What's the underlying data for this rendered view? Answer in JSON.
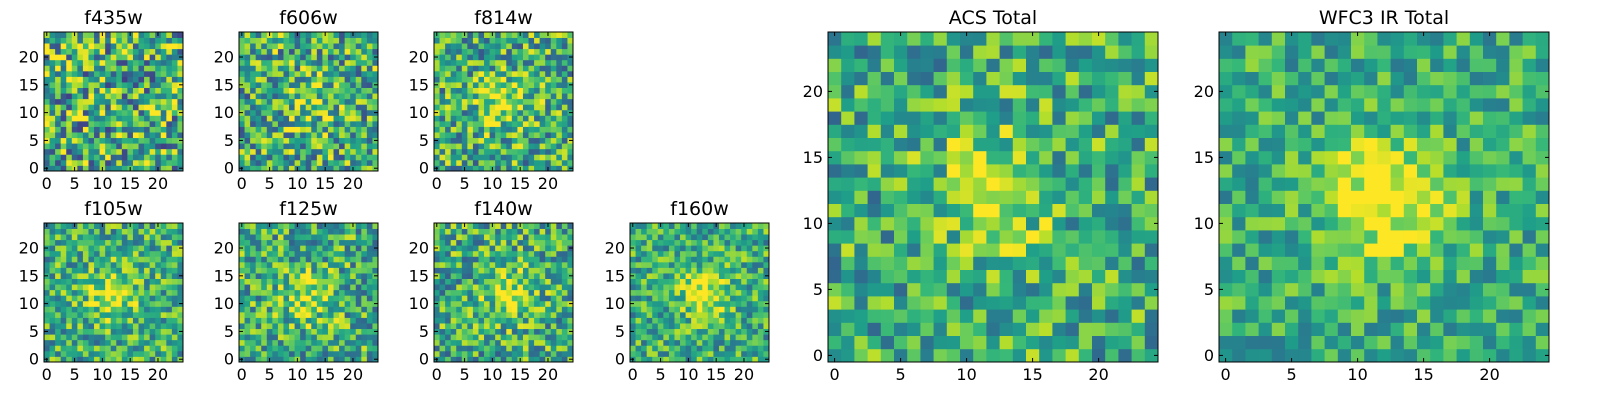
{
  "chart_data": [
    {
      "type": "heatmap",
      "title": "f435w",
      "grid_size": 25,
      "peak": [
        12,
        12
      ],
      "peak_contrast": 0.0,
      "noise": 0.85,
      "xticks": [
        0,
        5,
        10,
        15,
        20
      ],
      "yticks": [
        0,
        5,
        10,
        15,
        20
      ],
      "colormap": "viridis",
      "seed": 11
    },
    {
      "type": "heatmap",
      "title": "f606w",
      "grid_size": 25,
      "peak": [
        12,
        12
      ],
      "peak_contrast": 0.35,
      "noise": 0.75,
      "xticks": [
        0,
        5,
        10,
        15,
        20
      ],
      "yticks": [
        0,
        5,
        10,
        15,
        20
      ],
      "colormap": "viridis",
      "seed": 23
    },
    {
      "type": "heatmap",
      "title": "f814w",
      "grid_size": 25,
      "peak": [
        12,
        12
      ],
      "peak_contrast": 0.55,
      "noise": 0.7,
      "xticks": [
        0,
        5,
        10,
        15,
        20
      ],
      "yticks": [
        0,
        5,
        10,
        15,
        20
      ],
      "colormap": "viridis",
      "seed": 37
    },
    {
      "type": "heatmap",
      "title": "f105w",
      "grid_size": 25,
      "peak": [
        12,
        12
      ],
      "peak_contrast": 0.6,
      "noise": 0.6,
      "xticks": [
        0,
        5,
        10,
        15,
        20
      ],
      "yticks": [
        0,
        5,
        10,
        15,
        20
      ],
      "colormap": "viridis",
      "seed": 41
    },
    {
      "type": "heatmap",
      "title": "f125w",
      "grid_size": 25,
      "peak": [
        12,
        11
      ],
      "peak_contrast": 0.5,
      "noise": 0.65,
      "xticks": [
        0,
        5,
        10,
        15,
        20
      ],
      "yticks": [
        0,
        5,
        10,
        15,
        20
      ],
      "colormap": "viridis",
      "seed": 53
    },
    {
      "type": "heatmap",
      "title": "f140w",
      "grid_size": 25,
      "peak": [
        13,
        12
      ],
      "peak_contrast": 0.55,
      "noise": 0.65,
      "xticks": [
        0,
        5,
        10,
        15,
        20
      ],
      "yticks": [
        0,
        5,
        10,
        15,
        20
      ],
      "colormap": "viridis",
      "seed": 67
    },
    {
      "type": "heatmap",
      "title": "f160w",
      "grid_size": 25,
      "peak": [
        13,
        12
      ],
      "peak_contrast": 0.7,
      "noise": 0.55,
      "xticks": [
        0,
        5,
        10,
        15,
        20
      ],
      "yticks": [
        0,
        5,
        10,
        15,
        20
      ],
      "colormap": "viridis",
      "seed": 71
    },
    {
      "type": "heatmap",
      "title": "ACS Total",
      "grid_size": 25,
      "peak": [
        12,
        12
      ],
      "peak_contrast": 0.55,
      "noise": 0.6,
      "xticks": [
        0,
        5,
        10,
        15,
        20
      ],
      "yticks": [
        0,
        5,
        10,
        15,
        20
      ],
      "colormap": "viridis",
      "seed": 89
    },
    {
      "type": "heatmap",
      "title": "WFC3 IR Total",
      "grid_size": 25,
      "peak": [
        12,
        12
      ],
      "peak_contrast": 0.8,
      "noise": 0.45,
      "xticks": [
        0,
        5,
        10,
        15,
        20
      ],
      "yticks": [
        0,
        5,
        10,
        15,
        20
      ],
      "colormap": "viridis",
      "seed": 97
    }
  ]
}
